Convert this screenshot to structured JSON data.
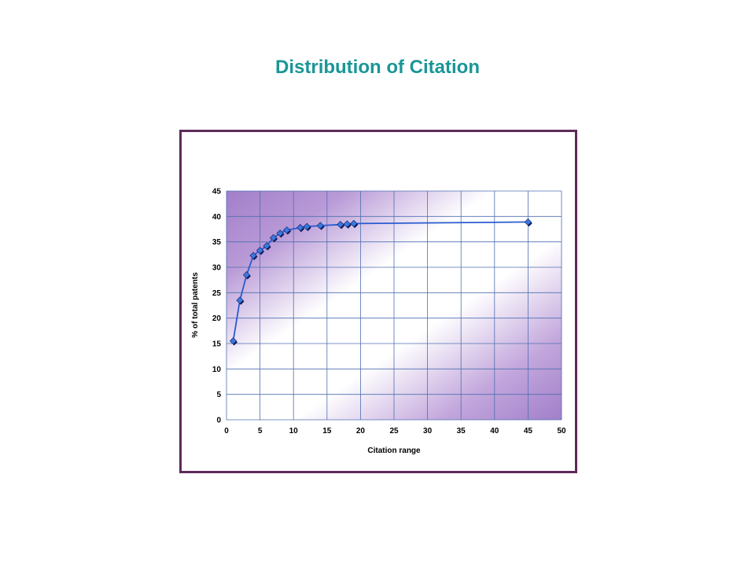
{
  "page": {
    "title": "Distribution of Citation"
  },
  "colors": {
    "title": "#1a9696",
    "frame_border": "#5e2a5a",
    "plot_gradient_dark": "#a27fca",
    "plot_gradient_light": "#ffffff",
    "grid": "#4f6fb0",
    "series_line": "#2a5bd0",
    "marker_fill": "#3a78e0",
    "marker_edge": "#0e1a5a"
  },
  "chart_data": {
    "type": "scatter",
    "title": "",
    "xlabel": "Citation range",
    "ylabel": "% of total patents",
    "xlim": [
      0,
      50
    ],
    "ylim": [
      0,
      45
    ],
    "x_ticks": [
      0,
      5,
      10,
      15,
      20,
      25,
      30,
      35,
      40,
      45,
      50
    ],
    "y_ticks": [
      0,
      5,
      10,
      15,
      20,
      25,
      30,
      35,
      40,
      45
    ],
    "grid": true,
    "legend": "none",
    "connected": true,
    "marker": "diamond",
    "series": [
      {
        "x": [
          1,
          2,
          3,
          4,
          5,
          6,
          7,
          8,
          9,
          11,
          12,
          14,
          17,
          18,
          19,
          45
        ],
        "y": [
          15.5,
          23.5,
          28.5,
          32.3,
          33.3,
          34.2,
          35.8,
          36.7,
          37.3,
          37.8,
          38.0,
          38.2,
          38.4,
          38.5,
          38.6,
          38.9
        ]
      }
    ]
  }
}
